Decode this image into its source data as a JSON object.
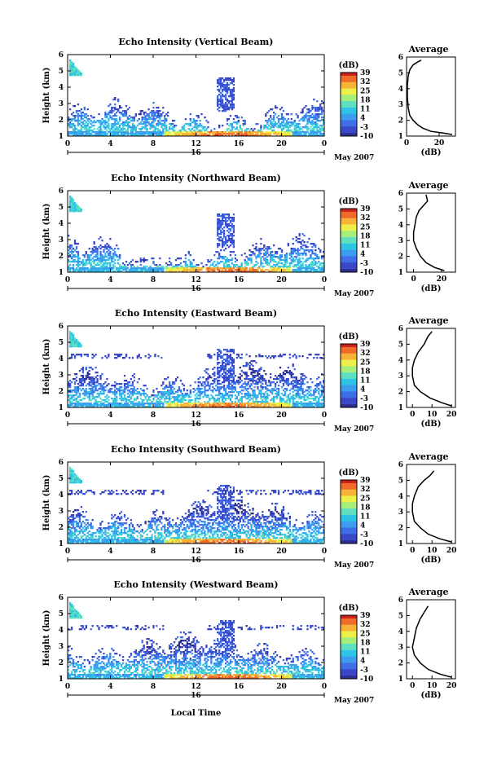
{
  "common": {
    "height_axis_label": "Height (km)",
    "height_ticks": [
      1,
      2,
      3,
      4,
      5,
      6
    ],
    "time_ticks": [
      0,
      4,
      8,
      12,
      16,
      20,
      0
    ],
    "day_label": "16",
    "date_label": "May 2007",
    "xlabel": "Local Time",
    "colorbar_unit": "(dB)",
    "colorbar_ticks": [
      39,
      32,
      25,
      18,
      11,
      4,
      -3,
      -10
    ],
    "avg_title": "Average",
    "avg_xlabel": "(dB)",
    "colormap": [
      "#2b2d8f",
      "#3a48c8",
      "#3f6ee8",
      "#3b9cf0",
      "#2fc4e6",
      "#5ee0c0",
      "#a6ee7a",
      "#eef04a",
      "#f8b236",
      "#f06a2a",
      "#c8201c"
    ]
  },
  "chart_data": [
    {
      "type": "heatmap",
      "title": "Echo Intensity (Vertical Beam)",
      "ylabel": "Height (km)",
      "ylim": [
        1,
        6
      ],
      "xlim": [
        0,
        24
      ],
      "avg": {
        "title": "Average",
        "xlabel": "(dB)",
        "xticks": [
          0,
          20
        ],
        "xlim": [
          0,
          30
        ],
        "profile": [
          [
            28,
            1.1
          ],
          [
            22,
            1.2
          ],
          [
            15,
            1.3
          ],
          [
            10,
            1.5
          ],
          [
            7,
            1.7
          ],
          [
            4,
            2.0
          ],
          [
            2,
            2.3
          ],
          [
            1,
            2.8
          ],
          [
            0.5,
            3.5
          ],
          [
            0.5,
            4.2
          ],
          [
            1,
            4.8
          ],
          [
            2,
            5.2
          ],
          [
            4,
            5.5
          ],
          [
            7,
            5.7
          ],
          [
            9,
            5.8
          ]
        ]
      }
    },
    {
      "type": "heatmap",
      "title": "Echo Intensity (Northward Beam)",
      "ylabel": "Height (km)",
      "ylim": [
        1,
        6
      ],
      "xlim": [
        0,
        24
      ],
      "avg": {
        "title": "Average",
        "xlabel": "(dB)",
        "xticks": [
          0,
          20
        ],
        "xlim": [
          -5,
          30
        ],
        "profile": [
          [
            22,
            1.1
          ],
          [
            15,
            1.3
          ],
          [
            9,
            1.6
          ],
          [
            5,
            2.0
          ],
          [
            2,
            2.5
          ],
          [
            0,
            3.0
          ],
          [
            0,
            3.5
          ],
          [
            1,
            4.0
          ],
          [
            2,
            4.5
          ],
          [
            4,
            4.9
          ],
          [
            7,
            5.2
          ],
          [
            10,
            5.5
          ],
          [
            9,
            5.9
          ]
        ]
      }
    },
    {
      "type": "heatmap",
      "title": "Echo Intensity (Eastward Beam)",
      "ylabel": "Height (km)",
      "ylim": [
        1,
        6
      ],
      "xlim": [
        0,
        24
      ],
      "avg": {
        "title": "Average",
        "xlabel": "(dB)",
        "xticks": [
          0,
          10,
          20
        ],
        "xlim": [
          -3,
          22
        ],
        "profile": [
          [
            20,
            1.1
          ],
          [
            15,
            1.3
          ],
          [
            9,
            1.6
          ],
          [
            4,
            2.0
          ],
          [
            1,
            2.4
          ],
          [
            0,
            3.0
          ],
          [
            0,
            3.5
          ],
          [
            1,
            4.0
          ],
          [
            3,
            4.5
          ],
          [
            6,
            5.0
          ],
          [
            8,
            5.5
          ],
          [
            10,
            5.8
          ]
        ]
      }
    },
    {
      "type": "heatmap",
      "title": "Echo Intensity (Southward Beam)",
      "ylabel": "Height (km)",
      "ylim": [
        1,
        6
      ],
      "xlim": [
        0,
        24
      ],
      "avg": {
        "title": "Average",
        "xlabel": "(dB)",
        "xticks": [
          0,
          10,
          20
        ],
        "xlim": [
          -3,
          22
        ],
        "profile": [
          [
            20,
            1.1
          ],
          [
            14,
            1.3
          ],
          [
            8,
            1.6
          ],
          [
            4,
            2.0
          ],
          [
            1,
            2.4
          ],
          [
            0,
            3.0
          ],
          [
            0,
            3.5
          ],
          [
            1,
            4.0
          ],
          [
            3,
            4.6
          ],
          [
            6,
            5.0
          ],
          [
            9,
            5.3
          ],
          [
            11,
            5.6
          ]
        ]
      }
    },
    {
      "type": "heatmap",
      "title": "Echo Intensity (Westward Beam)",
      "ylabel": "Height (km)",
      "ylim": [
        1,
        6
      ],
      "xlim": [
        0,
        24
      ],
      "avg": {
        "title": "Average",
        "xlabel": "(dB)",
        "xticks": [
          0,
          10,
          20
        ],
        "xlim": [
          -3,
          22
        ],
        "profile": [
          [
            20,
            1.1
          ],
          [
            14,
            1.3
          ],
          [
            8,
            1.6
          ],
          [
            4,
            2.0
          ],
          [
            1,
            2.5
          ],
          [
            0,
            3.0
          ],
          [
            1,
            3.6
          ],
          [
            2,
            4.2
          ],
          [
            4,
            4.8
          ],
          [
            6,
            5.2
          ],
          [
            8,
            5.6
          ]
        ]
      }
    }
  ]
}
